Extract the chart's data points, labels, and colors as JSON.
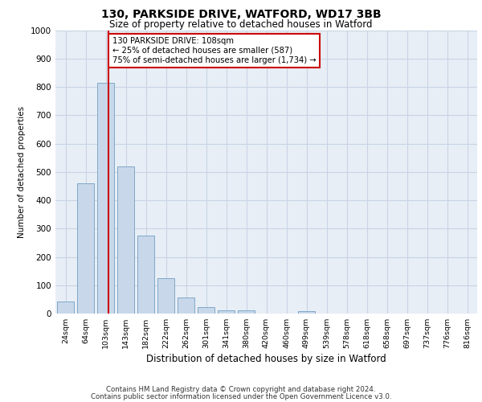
{
  "title_line1": "130, PARKSIDE DRIVE, WATFORD, WD17 3BB",
  "title_line2": "Size of property relative to detached houses in Watford",
  "xlabel": "Distribution of detached houses by size in Watford",
  "ylabel": "Number of detached properties",
  "footnote1": "Contains HM Land Registry data © Crown copyright and database right 2024.",
  "footnote2": "Contains public sector information licensed under the Open Government Licence v3.0.",
  "bar_labels": [
    "24sqm",
    "64sqm",
    "103sqm",
    "143sqm",
    "182sqm",
    "222sqm",
    "262sqm",
    "301sqm",
    "341sqm",
    "380sqm",
    "420sqm",
    "460sqm",
    "499sqm",
    "539sqm",
    "578sqm",
    "618sqm",
    "658sqm",
    "697sqm",
    "737sqm",
    "776sqm",
    "816sqm"
  ],
  "bar_values": [
    42,
    460,
    815,
    520,
    275,
    125,
    58,
    22,
    10,
    10,
    0,
    0,
    8,
    0,
    0,
    0,
    0,
    0,
    0,
    0,
    0
  ],
  "bar_color": "#c8d8ea",
  "bar_edgecolor": "#7fa8c8",
  "ylim": [
    0,
    1000
  ],
  "yticks": [
    0,
    100,
    200,
    300,
    400,
    500,
    600,
    700,
    800,
    900,
    1000
  ],
  "property_label": "130 PARKSIDE DRIVE: 108sqm",
  "annotation_line1": "← 25% of detached houses are smaller (587)",
  "annotation_line2": "75% of semi-detached houses are larger (1,734) →",
  "vline_color": "#cc0000",
  "annotation_box_edgecolor": "#cc0000",
  "grid_color": "#c8d4e4",
  "background_color": "#e8eef6",
  "vline_position": 2.125
}
